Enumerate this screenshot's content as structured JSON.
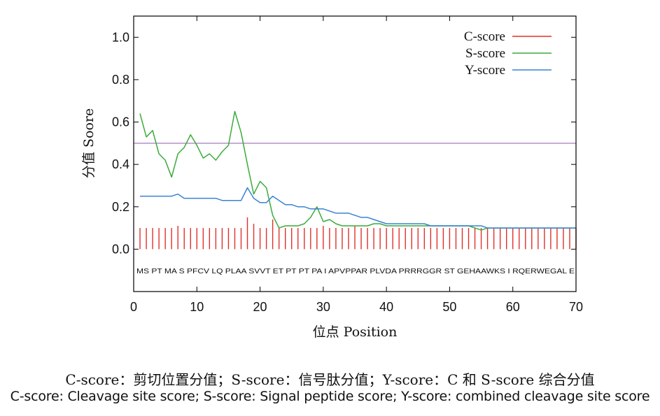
{
  "chart_data": {
    "type": "line",
    "xlabel": "位点 Position",
    "ylabel": "分值 Soore",
    "xlim": [
      0,
      70
    ],
    "ylim": [
      -0.2,
      1.1
    ],
    "xticks": [
      0,
      10,
      20,
      30,
      40,
      50,
      60,
      70
    ],
    "yticks": [
      0.0,
      0.2,
      0.4,
      0.6,
      0.8,
      1.0
    ],
    "ytick_labels": [
      "0.0",
      "0.2",
      "0.4",
      "0.6",
      "0.8",
      "1.0"
    ],
    "legend_position": "top-right",
    "threshold": 0.5,
    "sequence": "MSPTMASPFCVLQPLAASVVTETPTPTPAIAPVPPARPLVDAPRRRGGRSTGEHAAWKSIRQERWEGALE",
    "sequence_display": "MS PT MA S PFCV LQ PLAA SVVT ET PT PT PA I APVPPAR PLVDA PRRRGGR ST GEHAAWKS I RQERWEGAL E",
    "series": [
      {
        "name": "C-score",
        "kind": "impulse",
        "color": "#e0302a",
        "x": [
          1,
          2,
          3,
          4,
          5,
          6,
          7,
          8,
          9,
          10,
          11,
          12,
          13,
          14,
          15,
          16,
          17,
          18,
          19,
          20,
          21,
          22,
          23,
          24,
          25,
          26,
          27,
          28,
          29,
          30,
          31,
          32,
          33,
          34,
          35,
          36,
          37,
          38,
          39,
          40,
          41,
          42,
          43,
          44,
          45,
          46,
          47,
          48,
          49,
          50,
          51,
          52,
          53,
          54,
          55,
          56,
          57,
          58,
          59,
          60,
          61,
          62,
          63,
          64,
          65,
          66,
          67,
          68,
          69,
          70
        ],
        "values": [
          0.1,
          0.1,
          0.1,
          0.1,
          0.1,
          0.1,
          0.11,
          0.1,
          0.1,
          0.1,
          0.1,
          0.1,
          0.1,
          0.1,
          0.1,
          0.1,
          0.1,
          0.15,
          0.12,
          0.1,
          0.1,
          0.14,
          0.1,
          0.1,
          0.1,
          0.1,
          0.1,
          0.1,
          0.1,
          0.11,
          0.1,
          0.1,
          0.1,
          0.1,
          0.11,
          0.1,
          0.1,
          0.1,
          0.1,
          0.1,
          0.1,
          0.1,
          0.1,
          0.1,
          0.1,
          0.1,
          0.1,
          0.1,
          0.1,
          0.1,
          0.1,
          0.1,
          0.1,
          0.1,
          0.1,
          0.1,
          0.1,
          0.1,
          0.1,
          0.1,
          0.1,
          0.1,
          0.1,
          0.1,
          0.1,
          0.1,
          0.1,
          0.1,
          0.1,
          0.1
        ]
      },
      {
        "name": "S-score",
        "kind": "line",
        "color": "#3aac3a",
        "x": [
          1,
          2,
          3,
          4,
          5,
          6,
          7,
          8,
          9,
          10,
          11,
          12,
          13,
          14,
          15,
          16,
          17,
          18,
          19,
          20,
          21,
          22,
          23,
          24,
          25,
          26,
          27,
          28,
          29,
          30,
          31,
          32,
          33,
          34,
          35,
          36,
          37,
          38,
          39,
          40,
          41,
          42,
          43,
          44,
          45,
          46,
          47,
          48,
          49,
          50,
          51,
          52,
          53,
          54,
          55,
          56,
          57,
          58,
          59,
          60,
          61,
          62,
          63,
          64,
          65,
          66,
          67,
          68,
          69,
          70
        ],
        "values": [
          0.64,
          0.53,
          0.56,
          0.45,
          0.42,
          0.34,
          0.45,
          0.48,
          0.54,
          0.49,
          0.43,
          0.45,
          0.42,
          0.46,
          0.49,
          0.65,
          0.55,
          0.4,
          0.26,
          0.32,
          0.29,
          0.16,
          0.1,
          0.11,
          0.11,
          0.11,
          0.12,
          0.15,
          0.2,
          0.13,
          0.14,
          0.12,
          0.11,
          0.11,
          0.11,
          0.11,
          0.11,
          0.12,
          0.12,
          0.11,
          0.11,
          0.11,
          0.11,
          0.11,
          0.11,
          0.11,
          0.11,
          0.11,
          0.11,
          0.11,
          0.11,
          0.11,
          0.11,
          0.1,
          0.09,
          0.1,
          0.1,
          0.1,
          0.1,
          0.1,
          0.1,
          0.1,
          0.1,
          0.1,
          0.1,
          0.1,
          0.1,
          0.1,
          0.1,
          0.1
        ]
      },
      {
        "name": "Y-score",
        "kind": "line",
        "color": "#3a82d2",
        "x": [
          1,
          2,
          3,
          4,
          5,
          6,
          7,
          8,
          9,
          10,
          11,
          12,
          13,
          14,
          15,
          16,
          17,
          18,
          19,
          20,
          21,
          22,
          23,
          24,
          25,
          26,
          27,
          28,
          29,
          30,
          31,
          32,
          33,
          34,
          35,
          36,
          37,
          38,
          39,
          40,
          41,
          42,
          43,
          44,
          45,
          46,
          47,
          48,
          49,
          50,
          51,
          52,
          53,
          54,
          55,
          56,
          57,
          58,
          59,
          60,
          61,
          62,
          63,
          64,
          65,
          66,
          67,
          68,
          69,
          70
        ],
        "values": [
          0.25,
          0.25,
          0.25,
          0.25,
          0.25,
          0.25,
          0.26,
          0.24,
          0.24,
          0.24,
          0.24,
          0.24,
          0.24,
          0.23,
          0.23,
          0.23,
          0.23,
          0.29,
          0.24,
          0.22,
          0.22,
          0.25,
          0.23,
          0.21,
          0.21,
          0.2,
          0.2,
          0.19,
          0.19,
          0.19,
          0.18,
          0.17,
          0.17,
          0.17,
          0.16,
          0.15,
          0.15,
          0.14,
          0.13,
          0.12,
          0.12,
          0.12,
          0.12,
          0.12,
          0.12,
          0.12,
          0.11,
          0.11,
          0.11,
          0.11,
          0.11,
          0.11,
          0.11,
          0.11,
          0.11,
          0.1,
          0.1,
          0.1,
          0.1,
          0.1,
          0.1,
          0.1,
          0.1,
          0.1,
          0.1,
          0.1,
          0.1,
          0.1,
          0.1,
          0.1
        ]
      }
    ]
  },
  "colors": {
    "threshold": "#a678c0",
    "axis": "#000000"
  },
  "caption": {
    "zh": "C-score：剪切位置分值；S-score：信号肽分值；Y-score：C 和 S-score 综合分值",
    "en": "C-score: Cleavage site score; S-score: Signal peptide score; Y-score: combined cleavage site score"
  }
}
